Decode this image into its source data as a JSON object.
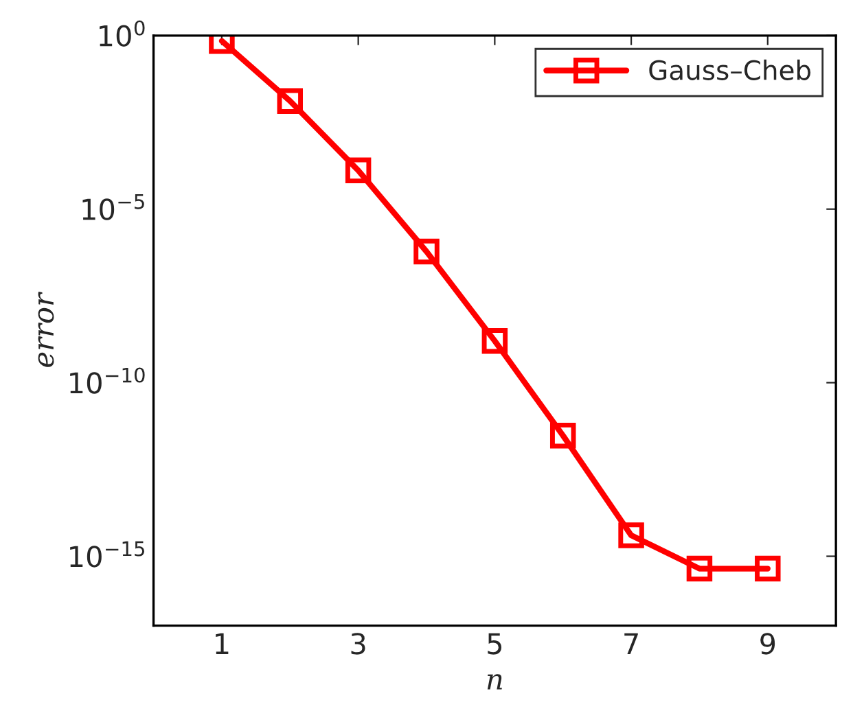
{
  "chart_data": {
    "type": "line",
    "xlabel": "n",
    "ylabel": "error",
    "x": [
      1,
      2,
      3,
      4,
      5,
      6,
      7,
      8,
      9
    ],
    "series": [
      {
        "name": "Gauss–Cheb",
        "color": "#ff0000",
        "values": [
          0.7,
          0.013,
          0.00013,
          6e-07,
          1.6e-09,
          3e-12,
          4e-15,
          4.4e-16,
          4.4e-16
        ]
      }
    ],
    "log": "y",
    "xlim": [
      0,
      10
    ],
    "ylim": [
      1e-17,
      1
    ],
    "xticks": [
      1,
      3,
      5,
      7,
      9
    ],
    "yticks": [
      {
        "value": 1e-15,
        "label": "10$^{−15}$"
      },
      {
        "value": 1e-10,
        "label": "10$^{−10}$"
      },
      {
        "value": 1e-05,
        "label": "10$^{−5}$"
      },
      {
        "value": 1,
        "label": "10$^{0}$"
      }
    ],
    "grid": false,
    "legend": "top right",
    "marker": "square",
    "line_style": "solid"
  }
}
